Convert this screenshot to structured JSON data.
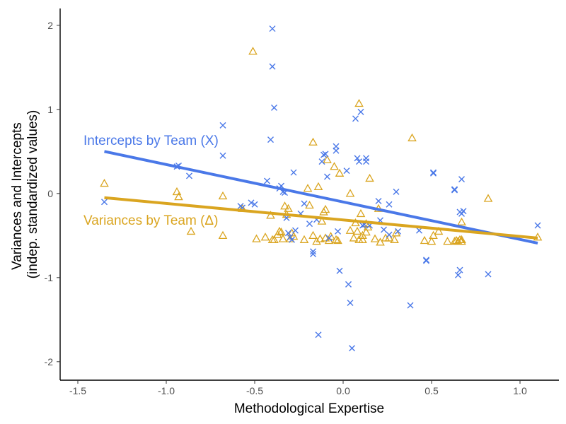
{
  "chart_data": {
    "type": "scatter",
    "xlabel": "Methodological Expertise",
    "ylabel_lines": [
      "Variances and Intercepts",
      "(indep. standardized values)"
    ],
    "xlim": [
      -1.6,
      1.22
    ],
    "ylim": [
      -2.22,
      2.2
    ],
    "x_ticks": [
      -1.5,
      -1.0,
      -0.5,
      0.0,
      0.5,
      1.0
    ],
    "x_tick_labels": [
      "-1.5",
      "-1.0",
      "-0.5",
      "0.0",
      "0.5",
      "1.0"
    ],
    "y_ticks": [
      -2,
      -1,
      0,
      1,
      2
    ],
    "y_tick_labels": [
      "-2",
      "-1",
      "0",
      "1",
      "2"
    ],
    "grid": false,
    "legend": "none",
    "series": [
      {
        "name": "Intercepts by Team (X)",
        "color": "#4a78e8",
        "marker": "x",
        "label_position": "upper-left",
        "fit_line": [
          [
            -1.35,
            0.5
          ],
          [
            1.1,
            -0.59
          ]
        ],
        "points": [
          [
            -1.35,
            -0.1
          ],
          [
            -0.94,
            0.32
          ],
          [
            -0.93,
            0.33
          ],
          [
            -0.87,
            0.21
          ],
          [
            -0.68,
            0.81
          ],
          [
            -0.68,
            0.45
          ],
          [
            -0.58,
            -0.15
          ],
          [
            -0.57,
            -0.17
          ],
          [
            -0.52,
            -0.11
          ],
          [
            -0.5,
            -0.13
          ],
          [
            -0.43,
            0.15
          ],
          [
            -0.41,
            0.64
          ],
          [
            -0.4,
            1.96
          ],
          [
            -0.4,
            1.51
          ],
          [
            -0.39,
            1.02
          ],
          [
            -0.36,
            0.06
          ],
          [
            -0.35,
            0.09
          ],
          [
            -0.34,
            0.02
          ],
          [
            -0.33,
            0.01
          ],
          [
            -0.32,
            -0.29
          ],
          [
            -0.31,
            -0.47
          ],
          [
            -0.3,
            -0.52
          ],
          [
            -0.29,
            -0.55
          ],
          [
            -0.28,
            0.25
          ],
          [
            -0.27,
            -0.44
          ],
          [
            -0.24,
            -0.24
          ],
          [
            -0.22,
            -0.12
          ],
          [
            -0.19,
            -0.36
          ],
          [
            -0.17,
            -0.69
          ],
          [
            -0.17,
            -0.72
          ],
          [
            -0.15,
            -0.31
          ],
          [
            -0.14,
            -1.68
          ],
          [
            -0.12,
            0.38
          ],
          [
            -0.11,
            0.46
          ],
          [
            -0.1,
            0.47
          ],
          [
            -0.09,
            0.2
          ],
          [
            -0.08,
            -0.53
          ],
          [
            -0.04,
            0.56
          ],
          [
            -0.04,
            0.51
          ],
          [
            -0.03,
            -0.45
          ],
          [
            -0.02,
            -0.92
          ],
          [
            0.02,
            0.27
          ],
          [
            0.03,
            -1.08
          ],
          [
            0.04,
            -1.3
          ],
          [
            0.05,
            -1.84
          ],
          [
            0.07,
            0.89
          ],
          [
            0.08,
            0.42
          ],
          [
            0.09,
            0.38
          ],
          [
            0.1,
            0.97
          ],
          [
            0.11,
            -0.38
          ],
          [
            0.12,
            -0.37
          ],
          [
            0.13,
            0.38
          ],
          [
            0.13,
            0.42
          ],
          [
            0.15,
            -0.38
          ],
          [
            0.2,
            -0.09
          ],
          [
            0.21,
            -0.32
          ],
          [
            0.23,
            -0.43
          ],
          [
            0.26,
            -0.49
          ],
          [
            0.26,
            -0.13
          ],
          [
            0.3,
            0.02
          ],
          [
            0.31,
            -0.45
          ],
          [
            0.38,
            -1.33
          ],
          [
            0.43,
            -0.44
          ],
          [
            0.47,
            -0.79
          ],
          [
            0.47,
            -0.8
          ],
          [
            0.51,
            0.25
          ],
          [
            0.51,
            0.24
          ],
          [
            0.63,
            0.04
          ],
          [
            0.63,
            0.05
          ],
          [
            0.65,
            -0.97
          ],
          [
            0.66,
            -0.22
          ],
          [
            0.66,
            -0.91
          ],
          [
            0.67,
            -0.24
          ],
          [
            0.67,
            0.17
          ],
          [
            0.68,
            -0.21
          ],
          [
            0.82,
            -0.96
          ],
          [
            1.1,
            -0.38
          ]
        ]
      },
      {
        "name": "Variances by Team (Δ)",
        "color": "#daa520",
        "marker": "triangle",
        "label_position": "middle-left",
        "fit_line": [
          [
            -1.35,
            -0.05
          ],
          [
            1.1,
            -0.53
          ]
        ],
        "points": [
          [
            -1.35,
            0.12
          ],
          [
            -0.94,
            0.02
          ],
          [
            -0.93,
            -0.04
          ],
          [
            -0.86,
            -0.45
          ],
          [
            -0.68,
            -0.03
          ],
          [
            -0.68,
            -0.5
          ],
          [
            -0.57,
            -0.18
          ],
          [
            -0.51,
            1.69
          ],
          [
            -0.49,
            -0.54
          ],
          [
            -0.44,
            -0.52
          ],
          [
            -0.41,
            -0.26
          ],
          [
            -0.4,
            -0.55
          ],
          [
            -0.39,
            -0.55
          ],
          [
            -0.37,
            -0.49
          ],
          [
            -0.36,
            -0.45
          ],
          [
            -0.35,
            -0.46
          ],
          [
            -0.34,
            -0.54
          ],
          [
            -0.33,
            -0.15
          ],
          [
            -0.32,
            -0.25
          ],
          [
            -0.31,
            -0.18
          ],
          [
            -0.3,
            -0.54
          ],
          [
            -0.29,
            -0.47
          ],
          [
            -0.28,
            -0.51
          ],
          [
            -0.22,
            -0.55
          ],
          [
            -0.2,
            0.06
          ],
          [
            -0.19,
            -0.14
          ],
          [
            -0.17,
            0.61
          ],
          [
            -0.17,
            -0.5
          ],
          [
            -0.15,
            -0.57
          ],
          [
            -0.14,
            0.08
          ],
          [
            -0.13,
            -0.54
          ],
          [
            -0.12,
            -0.33
          ],
          [
            -0.11,
            -0.22
          ],
          [
            -0.1,
            -0.53
          ],
          [
            -0.1,
            -0.19
          ],
          [
            -0.09,
            0.4
          ],
          [
            -0.08,
            -0.56
          ],
          [
            -0.07,
            -0.51
          ],
          [
            -0.05,
            0.32
          ],
          [
            -0.04,
            -0.55
          ],
          [
            -0.03,
            -0.56
          ],
          [
            -0.02,
            0.24
          ],
          [
            0.04,
            -0.44
          ],
          [
            0.04,
            0.0
          ],
          [
            0.06,
            -0.53
          ],
          [
            0.07,
            -0.35
          ],
          [
            0.08,
            -0.45
          ],
          [
            0.09,
            -0.55
          ],
          [
            0.09,
            1.07
          ],
          [
            0.1,
            -0.24
          ],
          [
            0.11,
            -0.5
          ],
          [
            0.11,
            -0.55
          ],
          [
            0.13,
            -0.36
          ],
          [
            0.13,
            -0.46
          ],
          [
            0.14,
            -0.4
          ],
          [
            0.15,
            0.18
          ],
          [
            0.18,
            -0.54
          ],
          [
            0.2,
            -0.18
          ],
          [
            0.21,
            -0.58
          ],
          [
            0.24,
            -0.53
          ],
          [
            0.26,
            -0.53
          ],
          [
            0.29,
            -0.55
          ],
          [
            0.3,
            -0.47
          ],
          [
            0.39,
            0.66
          ],
          [
            0.46,
            -0.56
          ],
          [
            0.5,
            -0.57
          ],
          [
            0.51,
            -0.5
          ],
          [
            0.54,
            -0.45
          ],
          [
            0.59,
            -0.57
          ],
          [
            0.63,
            -0.57
          ],
          [
            0.64,
            -0.56
          ],
          [
            0.65,
            -0.57
          ],
          [
            0.66,
            -0.55
          ],
          [
            0.67,
            -0.57
          ],
          [
            0.67,
            -0.55
          ],
          [
            0.67,
            -0.34
          ],
          [
            0.82,
            -0.06
          ],
          [
            1.1,
            -0.52
          ]
        ]
      }
    ]
  }
}
